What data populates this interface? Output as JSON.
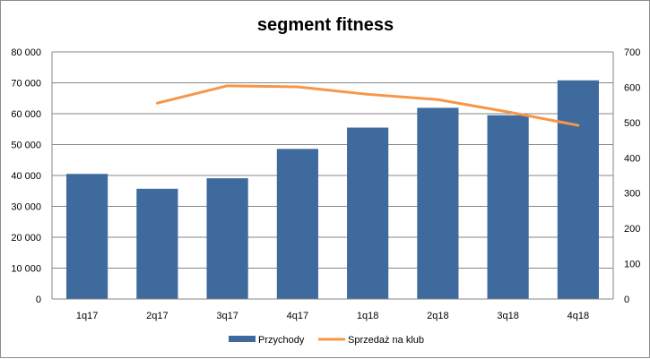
{
  "chart_data": {
    "type": "bar",
    "title": "segment fitness",
    "categories": [
      "1q17",
      "2q17",
      "3q17",
      "4q17",
      "1q18",
      "2q18",
      "3q18",
      "4q18"
    ],
    "series": [
      {
        "name": "Przychody",
        "type": "bar",
        "axis": "left",
        "color": "#3E6A9E",
        "values": [
          40500,
          35700,
          39100,
          48600,
          55500,
          61900,
          59500,
          70800
        ]
      },
      {
        "name": "Sprzedaż na klub",
        "type": "line",
        "axis": "right",
        "color": "#F79646",
        "values": [
          null,
          555,
          604,
          601,
          580,
          565,
          530,
          492
        ]
      }
    ],
    "y_left": {
      "ylim": [
        0,
        80000
      ],
      "tick_labels": [
        "0",
        "10 000",
        "20 000",
        "30 000",
        "40 000",
        "50 000",
        "60 000",
        "70 000",
        "80 000"
      ]
    },
    "y_right": {
      "ylim": [
        0,
        700
      ],
      "tick_labels": [
        "0",
        "100",
        "200",
        "300",
        "400",
        "500",
        "600",
        "700"
      ]
    },
    "grid": true,
    "legend_position": "bottom"
  }
}
